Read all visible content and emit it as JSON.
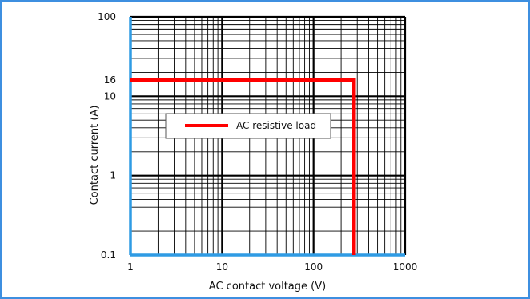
{
  "chart_data": {
    "type": "line",
    "xlabel": "AC contact voltage (V)",
    "ylabel": "Contact current (A)",
    "x_scale": "log",
    "y_scale": "log",
    "xlim": [
      1,
      1000
    ],
    "ylim": [
      0.1,
      100
    ],
    "x_ticks": [
      "1",
      "10",
      "100",
      "1000"
    ],
    "y_ticks": [
      "0.1",
      "1",
      "10",
      "16",
      "100"
    ],
    "grid": true,
    "legend_position": "upper-left",
    "series": [
      {
        "name": "AC resistive load",
        "color": "#ff0000",
        "x": [
          1,
          277,
          277
        ],
        "y": [
          16,
          16,
          0.1
        ]
      }
    ]
  },
  "colors": {
    "frame": "#3d8fe0",
    "axis": "#2f9be4",
    "grid_major": "#000000",
    "grid_minor": "#000000"
  }
}
